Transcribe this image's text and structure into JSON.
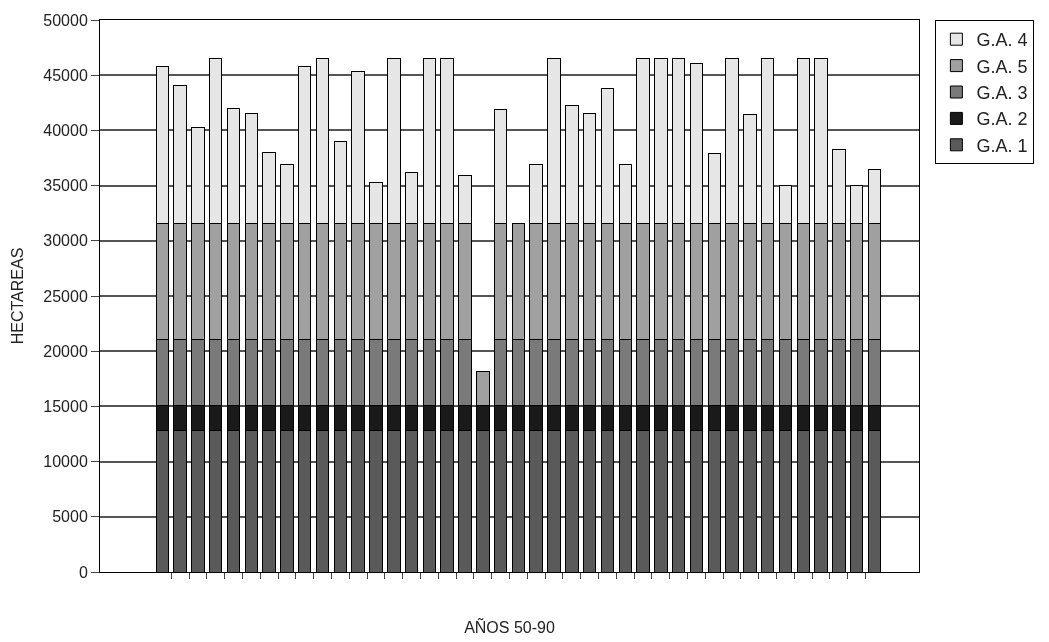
{
  "chart_data": {
    "type": "bar",
    "stacked": true,
    "xlabel": "AÑOS 50-90",
    "ylabel": "HECTAREAS",
    "categories": [
      null,
      null,
      null,
      null,
      null,
      null,
      null,
      null,
      null,
      null,
      null,
      null,
      null,
      null,
      null,
      null,
      null,
      null,
      null,
      null,
      null,
      null,
      null,
      null,
      null,
      null,
      null,
      null,
      null,
      null,
      null,
      null,
      null,
      null,
      null,
      null,
      null,
      null,
      null,
      null,
      null
    ],
    "series": [
      {
        "name": "G.A. 1",
        "color": "#5a5a5a",
        "values": [
          12800,
          12800,
          12800,
          12800,
          12800,
          12800,
          12800,
          12800,
          12800,
          12800,
          12800,
          12800,
          12800,
          12800,
          12800,
          12800,
          12800,
          12800,
          12800,
          12800,
          12800,
          12800,
          12800,
          12800,
          12800,
          12800,
          12800,
          12800,
          12800,
          12800,
          12800,
          12800,
          12800,
          12800,
          12800,
          12800,
          12800,
          12800,
          12800,
          12800,
          12800
        ]
      },
      {
        "name": "G.A. 2",
        "color": "#1a1a1a",
        "values": [
          2300,
          2300,
          2300,
          2300,
          2300,
          2300,
          2300,
          2300,
          2300,
          2300,
          2300,
          2300,
          2300,
          2300,
          2300,
          2300,
          2300,
          2300,
          2300,
          2300,
          2300,
          2300,
          2300,
          2300,
          2300,
          2300,
          2300,
          2300,
          2300,
          2300,
          2300,
          2300,
          2300,
          2300,
          2300,
          2300,
          2300,
          2300,
          2300,
          2300,
          2300
        ]
      },
      {
        "name": "G.A. 3",
        "color": "#7a7a7a",
        "values": [
          6000,
          6000,
          6000,
          6000,
          6000,
          6000,
          6000,
          6000,
          6000,
          6000,
          6000,
          6000,
          6000,
          6000,
          6000,
          6000,
          6000,
          6000,
          null,
          6000,
          6000,
          6000,
          6000,
          6000,
          6000,
          6000,
          6000,
          6000,
          6000,
          6000,
          6000,
          6000,
          6000,
          6000,
          6000,
          6000,
          6000,
          6000,
          6000,
          6000,
          6000
        ]
      },
      {
        "name": "G.A. 5",
        "color": "#a0a0a0",
        "values": [
          10500,
          10500,
          10500,
          10500,
          10500,
          10500,
          10500,
          10500,
          10500,
          10500,
          10500,
          10500,
          10500,
          10500,
          10500,
          10500,
          10500,
          10500,
          3100,
          10500,
          10500,
          10500,
          10500,
          10500,
          10500,
          10500,
          10500,
          10500,
          10500,
          10500,
          10500,
          10500,
          10500,
          10500,
          10500,
          10500,
          10500,
          10500,
          10500,
          10500,
          10500
        ]
      },
      {
        "name": "G.A. 4",
        "color": "#e6e6e6",
        "values": [
          14200,
          12500,
          8700,
          14900,
          10400,
          9900,
          6400,
          5300,
          14200,
          14900,
          7400,
          13700,
          3700,
          14900,
          4600,
          14900,
          14900,
          4300,
          null,
          10300,
          null,
          5300,
          14900,
          10700,
          9900,
          12200,
          5300,
          14900,
          14900,
          14900,
          14500,
          6300,
          14900,
          9800,
          14900,
          3400,
          14900,
          14900,
          6700,
          3400,
          4900
        ]
      }
    ],
    "ylim": [
      0,
      50000
    ],
    "yticks": [
      0,
      5000,
      10000,
      15000,
      20000,
      25000,
      30000,
      35000,
      40000,
      45000,
      50000
    ],
    "grid": "y",
    "legend": "right"
  }
}
